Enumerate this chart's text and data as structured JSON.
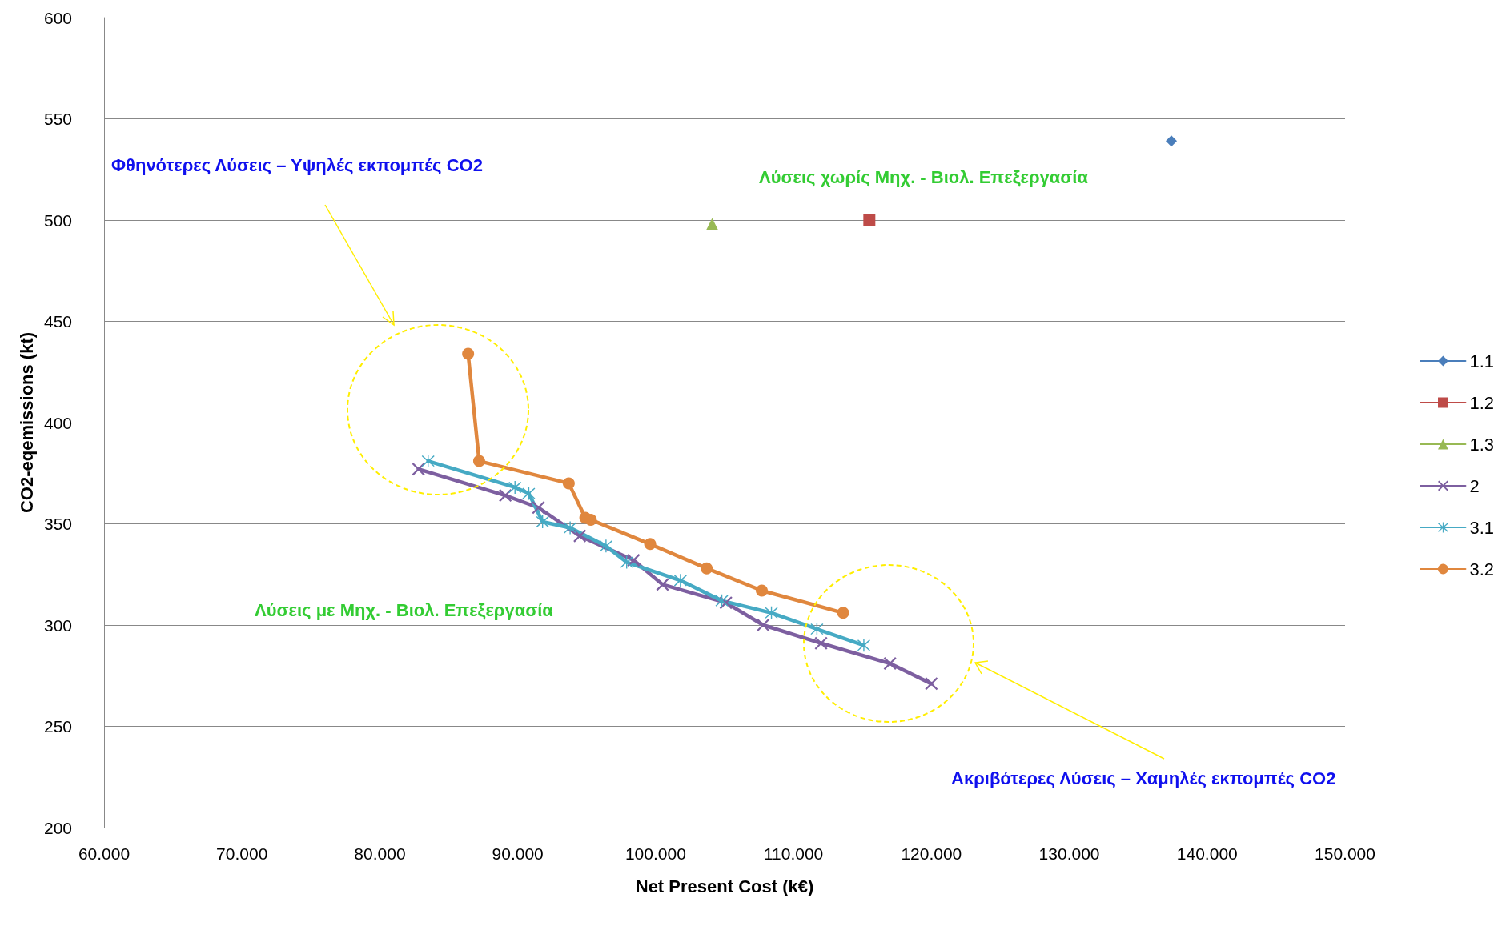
{
  "chart_data": {
    "type": "line",
    "xlabel": "Net Present Cost (k€)",
    "ylabel": "CO2-eqemissions (kt)",
    "xlim": [
      60,
      150
    ],
    "xticks": [
      {
        "value": 60,
        "label": "60.000"
      },
      {
        "value": 70,
        "label": "70.000"
      },
      {
        "value": 80,
        "label": "80.000"
      },
      {
        "value": 90,
        "label": "90.000"
      },
      {
        "value": 100,
        "label": "100.000"
      },
      {
        "value": 110,
        "label": "110.000"
      },
      {
        "value": 120,
        "label": "120.000"
      },
      {
        "value": 130,
        "label": "130.000"
      },
      {
        "value": 140,
        "label": "140.000"
      },
      {
        "value": 150,
        "label": "150.000"
      }
    ],
    "ylim": [
      200,
      600
    ],
    "yticks": [
      200,
      250,
      300,
      350,
      400,
      450,
      500,
      550,
      600
    ],
    "grid": "y",
    "legend": "right",
    "series": [
      {
        "name": "1.1",
        "color": "#4a7ebb",
        "marker": "diamond",
        "x": [
          137.4
        ],
        "values": [
          539
        ]
      },
      {
        "name": "1.2",
        "color": "#be4b48",
        "marker": "square",
        "x": [
          115.5
        ],
        "values": [
          500
        ]
      },
      {
        "name": "1.3",
        "color": "#98b954",
        "marker": "triangle",
        "x": [
          104.1
        ],
        "values": [
          498
        ]
      },
      {
        "name": "2",
        "color": "#7d5fa0",
        "marker": "cross",
        "x": [
          82.8,
          89.1,
          91.5,
          94.5,
          98.4,
          100.5,
          105.1,
          107.8,
          112.0,
          117.0,
          120.0
        ],
        "values": [
          377,
          364,
          358,
          344,
          332,
          320,
          311,
          300,
          291,
          281,
          271
        ]
      },
      {
        "name": "3.1",
        "color": "#46aac4",
        "marker": "star",
        "x": [
          83.5,
          89.8,
          90.8,
          91.8,
          93.8,
          96.4,
          97.9,
          101.8,
          104.8,
          108.4,
          111.7,
          115.1
        ],
        "values": [
          381,
          368,
          365,
          351,
          348,
          339,
          331,
          322,
          312,
          306,
          298,
          290
        ]
      },
      {
        "name": "3.2",
        "color": "#e0873e",
        "marker": "circle",
        "x": [
          86.4,
          87.2,
          93.7,
          94.9,
          95.3,
          99.6,
          103.7,
          107.7,
          113.6
        ],
        "values": [
          434,
          381,
          370,
          353,
          352,
          340,
          328,
          317,
          306
        ]
      }
    ],
    "annotations": [
      "Φθηνότερες Λύσεις – Υψηλές εκπομπές CO2",
      "Λύσεις χωρίς Μηχ. - Βιολ. Επεξεργασία",
      "Λύσεις με Μηχ. - Βιολ. Επεξεργασία",
      "Ακριβότερες Λύσεις – Χαμηλές εκπομπές CO2"
    ]
  }
}
